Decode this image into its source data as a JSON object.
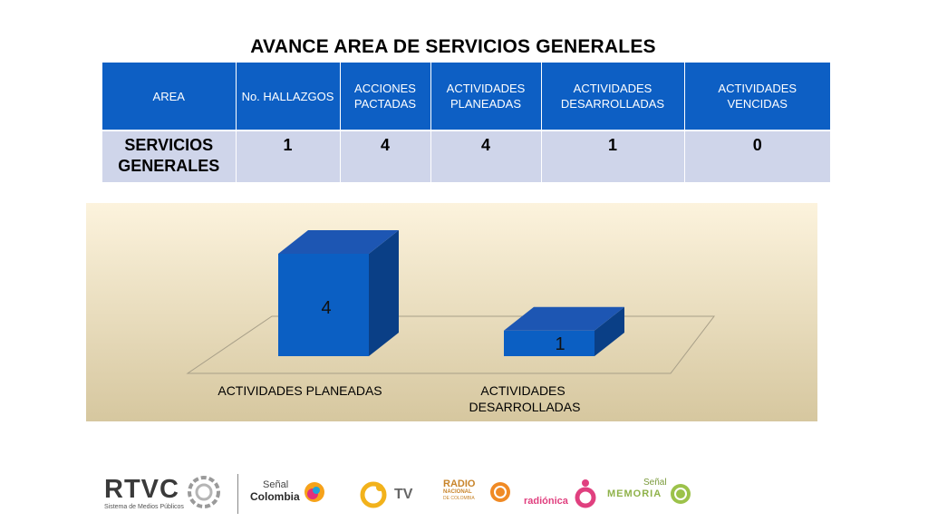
{
  "title": "AVANCE AREA DE SERVICIOS GENERALES",
  "table": {
    "headers": [
      "AREA",
      "No. HALLAZGOS",
      "ACCIONES PACTADAS",
      "ACTIVIDADES PLANEADAS",
      "ACTIVIDADES DESARROLLADAS",
      "ACTIVIDADES VENCIDAS"
    ],
    "row": [
      "SERVICIOS GENERALES",
      "1",
      "4",
      "4",
      "1",
      "0"
    ]
  },
  "chart_data": {
    "type": "bar",
    "categories": [
      "ACTIVIDADES PLANEADAS",
      "ACTIVIDADES DESARROLLADAS"
    ],
    "values": [
      4,
      1
    ],
    "data_labels": [
      "4",
      "1"
    ],
    "title": "",
    "xlabel": "",
    "ylabel": "",
    "ylim": [
      0,
      4
    ],
    "grid": false,
    "legend": "none",
    "style": "3d-column",
    "colors": {
      "bar_front": "#0b5fc3",
      "bar_side": "#0a3f86",
      "bar_top": "#1d56b3",
      "background_top": "#fcf3dd",
      "background_bottom": "#d6c79f"
    }
  },
  "footer": {
    "logos": [
      {
        "name": "rtvc",
        "main": "RTVC",
        "sub": "Sistema de Medios Públicos"
      },
      {
        "name": "senal-colombia",
        "line1": "Señal",
        "line2": "Colombia"
      },
      {
        "name": "canal-tv",
        "text": "TV"
      },
      {
        "name": "radio-nacional",
        "line1": "RADIO",
        "line2": "NACIONAL",
        "line3": "DE COLOMBIA"
      },
      {
        "name": "radionica",
        "text": "radiónica"
      },
      {
        "name": "senal-memoria",
        "line1": "Señal",
        "line2": "MEMORIA"
      }
    ]
  }
}
